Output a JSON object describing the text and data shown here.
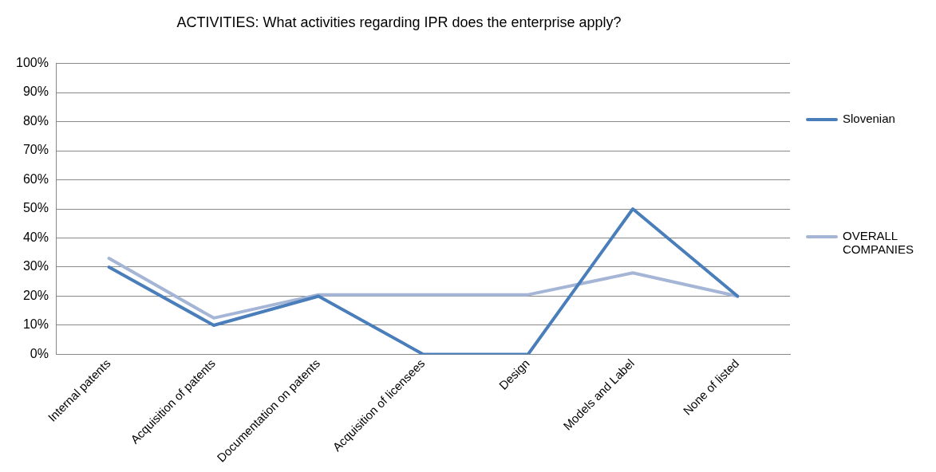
{
  "chart_data": {
    "type": "line",
    "title": "ACTIVITIES: What activities regarding IPR does the enterprise apply?",
    "categories": [
      "Internal patents",
      "Acquisition of patents",
      "Documentation on patents",
      "Acquisition of licensees",
      "Design",
      "Models and Label",
      "None of listed"
    ],
    "series": [
      {
        "name": "Slovenian",
        "color": "#4a7ebb",
        "values": [
          30,
          10,
          20,
          0,
          0,
          50,
          20
        ]
      },
      {
        "name": "OVERALL COMPANIES",
        "color": "#a5b5d6",
        "values": [
          33,
          12.5,
          20.5,
          20.5,
          20.5,
          28,
          20
        ]
      }
    ],
    "ylim": [
      0,
      100
    ],
    "yticks": [
      {
        "value": 0,
        "label": "0%"
      },
      {
        "value": 10,
        "label": "10%"
      },
      {
        "value": 20,
        "label": "20%"
      },
      {
        "value": 30,
        "label": "30%"
      },
      {
        "value": 40,
        "label": "40%"
      },
      {
        "value": 50,
        "label": "50%"
      },
      {
        "value": 60,
        "label": "60%"
      },
      {
        "value": 70,
        "label": "70%"
      },
      {
        "value": 80,
        "label": "80%"
      },
      {
        "value": 90,
        "label": "90%"
      },
      {
        "value": 100,
        "label": "100%"
      }
    ],
    "grid": "y",
    "legend": "right",
    "marker": "none",
    "line_style": "solid"
  }
}
